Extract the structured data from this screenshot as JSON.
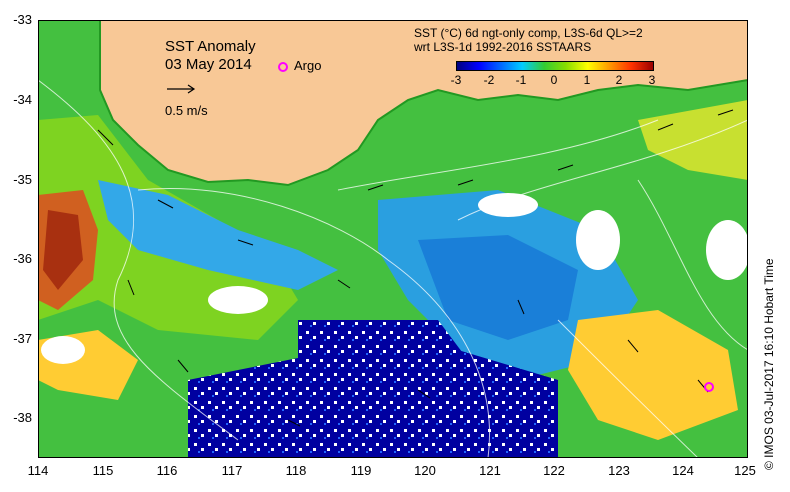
{
  "map": {
    "title_line1": "SST Anomaly",
    "title_line2": "03 May 2014",
    "scale_label": "0.5 m/s",
    "argo_label": "Argo",
    "header_line1": "SST (°C) 6d ngt-only comp, L3S-6d QL>=2",
    "header_line2": "wrt L3S-1d 1992-2016 SSTAARS",
    "credit": "© IMOS 03-Jul-2017 16:10 Hobart Time",
    "colorbar_ticks": [
      "-3",
      "-2",
      "-1",
      "0",
      "1",
      "2",
      "3"
    ],
    "lat_labels": [
      "-33",
      "-34",
      "-35",
      "-36",
      "-37",
      "-38"
    ],
    "lon_labels": [
      "114",
      "115",
      "116",
      "117",
      "118",
      "119",
      "120",
      "121",
      "122",
      "123",
      "124",
      "125"
    ],
    "lat_values": [
      -33,
      -34,
      -35,
      -36,
      -37,
      -38
    ],
    "lon_values": [
      114,
      115,
      116,
      117,
      118,
      119,
      120,
      121,
      122,
      123,
      124,
      125
    ],
    "extent": {
      "lon_min": 114,
      "lon_max": 125,
      "lat_min": -38.5,
      "lat_max": -33
    },
    "argo_floats": [
      {
        "lon": 124.4,
        "lat": -37.6
      }
    ],
    "colors": {
      "land": "#f8c896",
      "coast_green": "#33cc33",
      "argo": "#ff00ff",
      "cold": "#000080",
      "warm": "#cc3300"
    }
  }
}
